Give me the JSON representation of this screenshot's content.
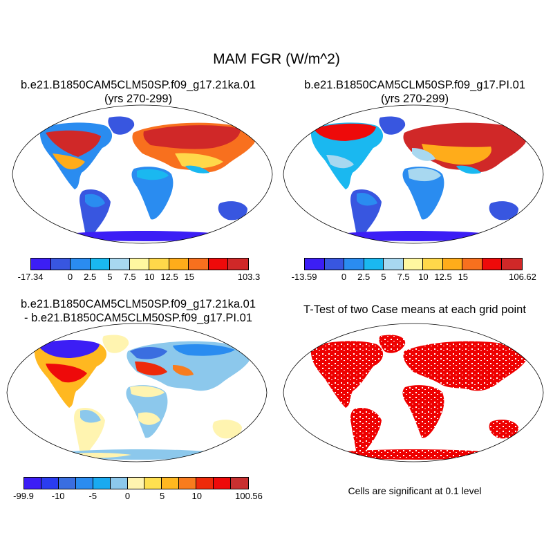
{
  "title": "MAM FGR (W/m^2)",
  "panels": [
    {
      "title": "b.e21.B1850CAM5CLM50SP.f09_g17.21ka.01",
      "subtitle": "(yrs 270-299)",
      "colorbar": {
        "colors": [
          "#3c1ef5",
          "#3856e0",
          "#2a8cf0",
          "#1ab8f0",
          "#a8d8f0",
          "#fff8a0",
          "#ffd84a",
          "#ffac1a",
          "#f8701e",
          "#ee0a0a",
          "#d02828"
        ],
        "labels": [
          "-17.34",
          "0",
          "2.5",
          "5",
          "7.5",
          "10",
          "12.5",
          "15",
          "103.3"
        ]
      }
    },
    {
      "title": "b.e21.B1850CAM5CLM50SP.f09_g17.PI.01",
      "subtitle": "(yrs 270-299)",
      "colorbar": {
        "colors": [
          "#3c1ef5",
          "#3856e0",
          "#2a8cf0",
          "#1ab8f0",
          "#a8d8f0",
          "#fff8a0",
          "#ffd84a",
          "#ffac1a",
          "#f8701e",
          "#ee0a0a",
          "#d02828"
        ],
        "labels": [
          "-13.59",
          "0",
          "2.5",
          "5",
          "7.5",
          "10",
          "12.5",
          "15",
          "106.62"
        ]
      }
    },
    {
      "title": "b.e21.B1850CAM5CLM50SP.f09_g17.21ka.01",
      "subtitle": "- b.e21.B1850CAM5CLM50SP.f09_g17.PI.01",
      "colorbar": {
        "colors": [
          "#3c1ef5",
          "#2a3cf0",
          "#3a6ee0",
          "#2a8cf0",
          "#1aaaf0",
          "#8cc8ec",
          "#fff4b0",
          "#ffe050",
          "#ffb820",
          "#f87c1e",
          "#ee2a0a",
          "#ee0a0a",
          "#c83030"
        ],
        "labels": [
          "-99.9",
          "-10",
          "-5",
          "0",
          "5",
          "10",
          "100.56"
        ]
      }
    },
    {
      "title": "T-Test of two Case means at each grid point",
      "footnote": "Cells are significant at 0.1 level",
      "fill_color": "#ee0000"
    }
  ]
}
